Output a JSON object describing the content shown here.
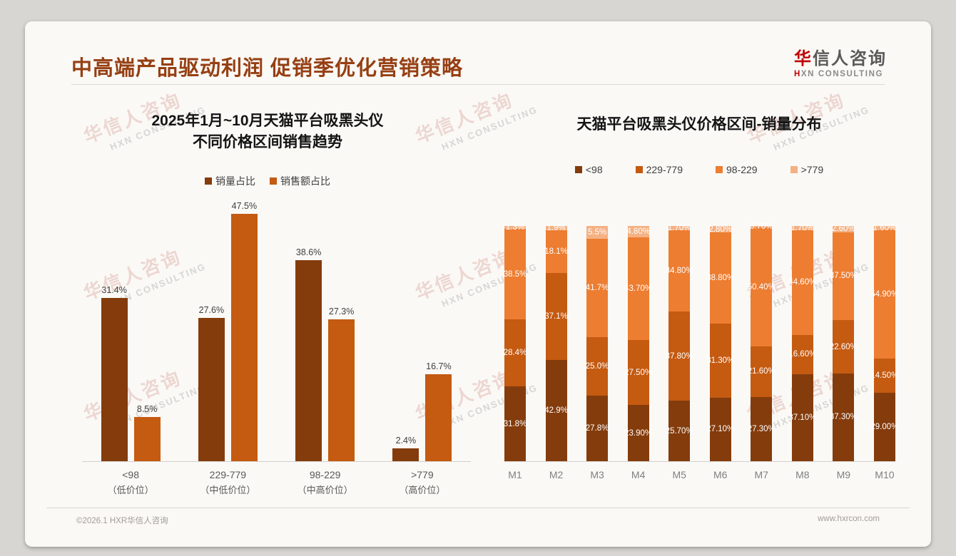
{
  "header": {
    "title": "中高端产品驱动利润 促销季优化营销策略",
    "logo": {
      "zh_first": "华",
      "zh_rest": "信人咨询",
      "en_first": "H",
      "en_rest": "XN CONSULTING"
    }
  },
  "watermark": {
    "zh": "华信人咨询",
    "en": "HXN CONSULTING"
  },
  "footer": {
    "copyright": "©2026.1 HXR华信人咨询",
    "website": "www.hxrcon.com"
  },
  "colors": {
    "dark_brown": "#843C0C",
    "medium_orange": "#C55A11",
    "orange": "#ED7D31",
    "light_orange": "#F4B183",
    "title_red": "#963F13"
  },
  "chart_data": [
    {
      "type": "bar",
      "title": "2025年1月~10月天猫平台吸黑头仪 不同价格区间销售趋势",
      "title_lines": [
        "2025年1月~10月天猫平台吸黑头仪",
        "不同价格区间销售趋势"
      ],
      "categories": [
        "<98",
        "229-779",
        "98-229",
        ">779"
      ],
      "category_sublabels": [
        "（低价位）",
        "（中低价位）",
        "（中高价位）",
        "（高价位）"
      ],
      "series": [
        {
          "name": "销量占比",
          "color": "#843C0C",
          "values": [
            31.4,
            27.6,
            38.6,
            2.4
          ],
          "labels": [
            "31.4%",
            "27.6%",
            "38.6%",
            "2.4%"
          ]
        },
        {
          "name": "销售额占比",
          "color": "#C55A11",
          "values": [
            8.5,
            47.5,
            27.3,
            16.7
          ],
          "labels": [
            "8.5%",
            "47.5%",
            "27.3%",
            "16.7%"
          ]
        }
      ],
      "xlabel": "",
      "ylabel": "",
      "ylim": [
        0,
        50
      ],
      "grid": false,
      "legend_position": "top",
      "value_labels": true
    },
    {
      "type": "bar",
      "stacked": true,
      "stacked_100pct": true,
      "title": "天猫平台吸黑头仪价格区间-销量分布",
      "categories": [
        "M1",
        "M2",
        "M3",
        "M4",
        "M5",
        "M6",
        "M7",
        "M8",
        "M9",
        "M10"
      ],
      "series": [
        {
          "name": "<98",
          "color": "#843C0C",
          "values": [
            31.8,
            42.9,
            27.8,
            23.9,
            25.7,
            27.1,
            27.3,
            37.1,
            37.3,
            29.0
          ],
          "labels": [
            "31.8%",
            "42.9%",
            "27.8%",
            "23.90%",
            "25.70%",
            "27.10%",
            "27.30%",
            "37.10%",
            "37.30%",
            "29.00%"
          ]
        },
        {
          "name": "229-779",
          "color": "#C55A11",
          "values": [
            28.4,
            37.1,
            25.0,
            27.5,
            37.8,
            31.3,
            21.6,
            16.6,
            22.6,
            14.5
          ],
          "labels": [
            "28.4%",
            "37.1%",
            "25.0%",
            "27.50%",
            "37.80%",
            "31.30%",
            "21.60%",
            "16.60%",
            "22.60%",
            "14.50%"
          ]
        },
        {
          "name": "98-229",
          "color": "#ED7D31",
          "values": [
            38.5,
            18.1,
            41.7,
            43.7,
            34.8,
            38.8,
            50.4,
            44.6,
            37.5,
            54.9
          ],
          "labels": [
            "38.5%",
            "18.1%",
            "41.7%",
            "43.70%",
            "34.80%",
            "38.80%",
            "50.40%",
            "44.60%",
            "37.50%",
            "54.90%"
          ]
        },
        {
          "name": ">779",
          "color": "#F4B183",
          "values": [
            1.3,
            1.9,
            5.5,
            4.8,
            1.7,
            2.8,
            0.7,
            1.7,
            2.6,
            1.6
          ],
          "labels": [
            "1.3%",
            "1.9%",
            "5.5%",
            "4.80%",
            "1.70%",
            "2.80%",
            "0.70%",
            "1.70%",
            "2.60%",
            "1.60%"
          ]
        }
      ],
      "xlabel": "",
      "ylabel": "",
      "ylim": [
        0,
        100
      ],
      "grid": false,
      "legend_position": "top",
      "value_labels": true
    }
  ]
}
